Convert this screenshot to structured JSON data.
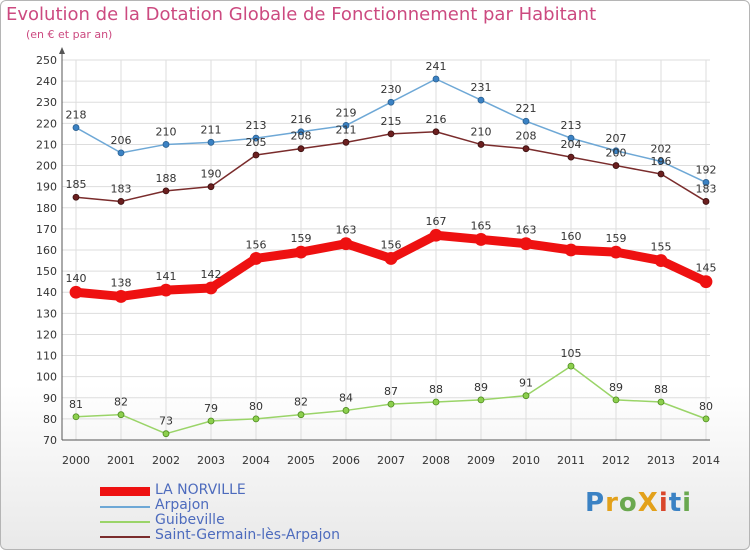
{
  "page": {
    "title": "Evolution de la Dotation Globale de Fonctionnement par Habitant",
    "subtitle": "(en € et par an)",
    "logo": "ProXiti"
  },
  "colors": {
    "title": "#cc4a80",
    "legend_text": "#4d6bbd",
    "grid": "#dddddd",
    "logo_letters": [
      "#3b82c4",
      "#e3a11b",
      "#6aa84f",
      "#e3a11b",
      "#d9462b",
      "#3b82c4",
      "#6aa84f"
    ]
  },
  "chart_data": {
    "type": "line",
    "title": "Evolution de la Dotation Globale de Fonctionnement par Habitant",
    "subtitle": "(en € et par an)",
    "x": [
      "2000",
      "2001",
      "2002",
      "2003",
      "2004",
      "2005",
      "2006",
      "2007",
      "2008",
      "2009",
      "2010",
      "2011",
      "2012",
      "2013",
      "2014"
    ],
    "ylim": [
      70,
      250
    ],
    "yticks": [
      70,
      80,
      90,
      100,
      110,
      120,
      130,
      140,
      150,
      160,
      170,
      180,
      190,
      200,
      210,
      220,
      230,
      240,
      250
    ],
    "grid": true,
    "legend_position": "bottom-left",
    "series": [
      {
        "name": "LA NORVILLE",
        "color": "#ee1111",
        "values": [
          140,
          138,
          141,
          142,
          156,
          159,
          163,
          156,
          167,
          165,
          163,
          160,
          159,
          155,
          145
        ]
      },
      {
        "name": "Arpajon",
        "color": "#6ea8d6",
        "values": [
          218,
          206,
          210,
          211,
          213,
          216,
          219,
          230,
          241,
          231,
          221,
          213,
          207,
          202,
          192
        ]
      },
      {
        "name": "Guibeville",
        "color": "#9ad468",
        "values": [
          81,
          82,
          73,
          79,
          80,
          82,
          84,
          87,
          88,
          89,
          91,
          105,
          89,
          88,
          80
        ]
      },
      {
        "name": "Saint-Germain-lès-Arpajon",
        "color": "#7a2c2c",
        "values": [
          185,
          183,
          188,
          190,
          205,
          208,
          211,
          215,
          216,
          210,
          208,
          204,
          200,
          196,
          183
        ]
      }
    ]
  }
}
